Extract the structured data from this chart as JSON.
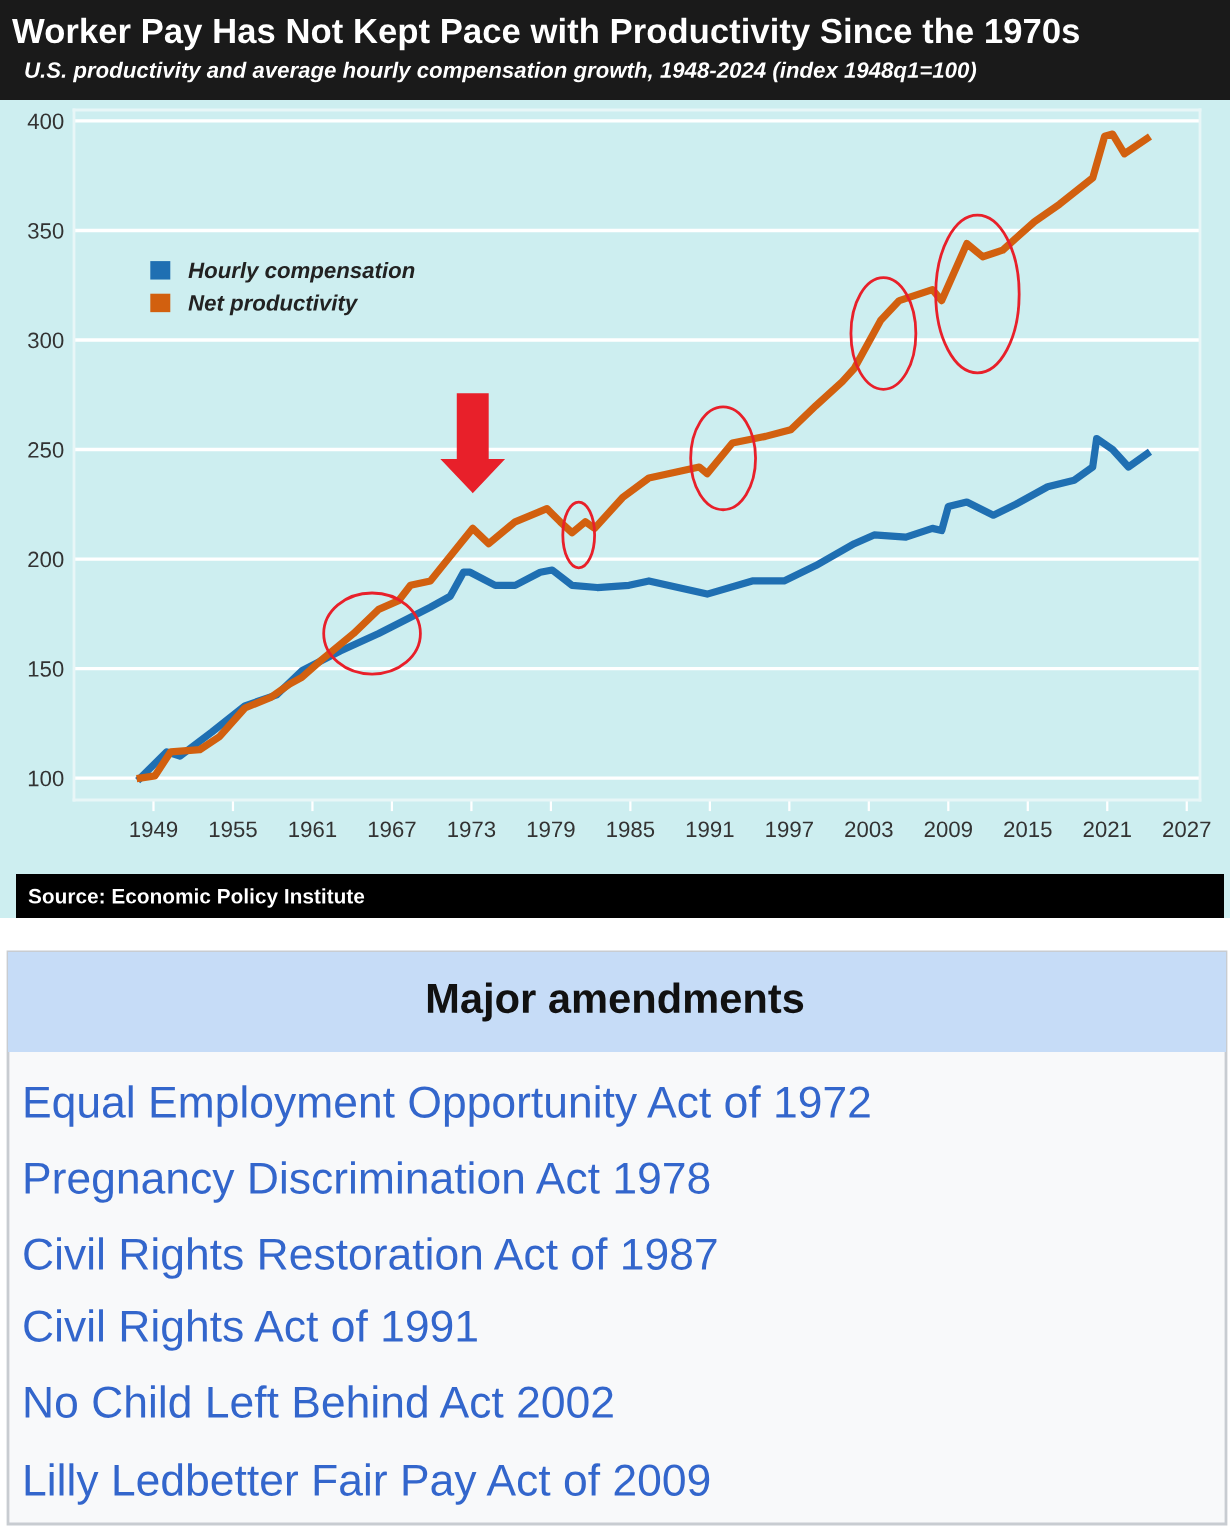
{
  "chart_data": {
    "type": "line",
    "title": "Worker Pay Has Not Kept Pace with Productivity Since the 1970s",
    "subtitle": "U.S. productivity and average hourly compensation growth, 1948-2024 (index 1948q1=100)",
    "series": [
      {
        "name": "Hourly compensation",
        "color": "#1f6fb2",
        "x": [
          1948,
          1950.0,
          1951.0,
          1953.4,
          1955.9,
          1958.3,
          1960.2,
          1963.1,
          1966.0,
          1969.9,
          1971.4,
          1972.4,
          1972.9,
          1974.8,
          1976.3,
          1978.2,
          1979.1,
          1980.6,
          1982.5,
          1984.9,
          1986.4,
          1990.8,
          1994.2,
          1996.6,
          1999.0,
          2001.9,
          2003.4,
          2005.8,
          2007.8,
          2008.5,
          2009.0,
          2010.4,
          2012.4,
          2014.1,
          2016.5,
          2018.5,
          2019.9,
          2020.2,
          2021.4,
          2022.6,
          2024.0
        ],
        "values": [
          100,
          112,
          110,
          121,
          133,
          138,
          149,
          158,
          166,
          178,
          183,
          194,
          194,
          188,
          188,
          194,
          195,
          188,
          187,
          188,
          190,
          184,
          190,
          190,
          197,
          207,
          211,
          210,
          214,
          213,
          224,
          226,
          220,
          225,
          233,
          236,
          242,
          255,
          250,
          242,
          248
        ]
      },
      {
        "name": "Net productivity",
        "color": "#d2600f",
        "x": [
          1948,
          1949.1,
          1950.3,
          1952.5,
          1954.0,
          1955.9,
          1957.9,
          1959.3,
          1960.2,
          1961.7,
          1964.1,
          1966.0,
          1967.5,
          1968.4,
          1969.9,
          1971.9,
          1973.1,
          1974.3,
          1976.3,
          1978.7,
          1979.7,
          1980.6,
          1981.6,
          1982.3,
          1984.4,
          1986.4,
          1990.2,
          1990.8,
          1992.7,
          1995.2,
          1997.1,
          1999.0,
          2001.0,
          2001.9,
          2003.9,
          2005.3,
          2007.8,
          2008.5,
          2010.4,
          2011.6,
          2013.1,
          2015.5,
          2017.4,
          2019.9,
          2020.8,
          2021.4,
          2022.3,
          2024.0
        ],
        "values": [
          100,
          101,
          112,
          113,
          119,
          132,
          137,
          143,
          146,
          154,
          166,
          177,
          181,
          188,
          190,
          205,
          214,
          207,
          217,
          223,
          217,
          212,
          217,
          214,
          228,
          237,
          242,
          239,
          253,
          256,
          259,
          270,
          281,
          287,
          309,
          318,
          323,
          318,
          344,
          338,
          341,
          354,
          362,
          374,
          393,
          394,
          385,
          392
        ]
      }
    ],
    "xlim": [
      1943,
      2028
    ],
    "xticks": [
      1949,
      1955,
      1961,
      1967,
      1973,
      1979,
      1985,
      1991,
      1997,
      2003,
      2009,
      2015,
      2021,
      2027
    ],
    "ylim": [
      90,
      405
    ],
    "yticks": [
      100,
      150,
      200,
      250,
      300,
      350,
      400
    ],
    "grid": "y",
    "legend": "top left",
    "annotations": [
      "Source: Economic Policy Institute",
      "Major amendments",
      "Equal Employment Opportunity Act of 1972",
      "Pregnancy Discrimination Act 1978",
      "Civil Rights Restoration Act of 1987",
      "Civil Rights Act of 1991",
      "No Child Left Behind Act 2002",
      "Lilly Ledbetter Fair Pay Act of 2009"
    ]
  }
}
